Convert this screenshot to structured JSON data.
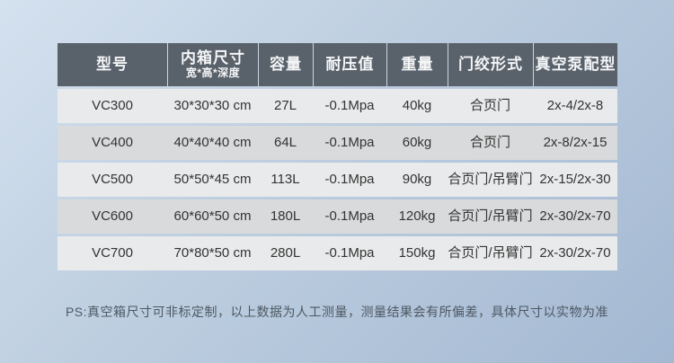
{
  "chart_data": {
    "type": "table",
    "columns": [
      {
        "label": "型号",
        "sublabel": ""
      },
      {
        "label": "内箱尺寸",
        "sublabel": "宽*高*深度"
      },
      {
        "label": "容量",
        "sublabel": ""
      },
      {
        "label": "耐压值",
        "sublabel": ""
      },
      {
        "label": "重量",
        "sublabel": ""
      },
      {
        "label": "门绞形式",
        "sublabel": ""
      },
      {
        "label": "真空泵配型",
        "sublabel": ""
      }
    ],
    "rows": [
      [
        "VC300",
        "30*30*30 cm",
        "27L",
        "-0.1Mpa",
        "40kg",
        "合页门",
        "2x-4/2x-8"
      ],
      [
        "VC400",
        "40*40*40 cm",
        "64L",
        "-0.1Mpa",
        "60kg",
        "合页门",
        "2x-8/2x-15"
      ],
      [
        "VC500",
        "50*50*45 cm",
        "113L",
        "-0.1Mpa",
        "90kg",
        "合页门/吊臂门",
        "2x-15/2x-30"
      ],
      [
        "VC600",
        "60*60*50 cm",
        "180L",
        "-0.1Mpa",
        "120kg",
        "合页门/吊臂门",
        "2x-30/2x-70"
      ],
      [
        "VC700",
        "70*80*50 cm",
        "280L",
        "-0.1Mpa",
        "150kg",
        "合页门/吊臂门",
        "2x-30/2x-70"
      ]
    ],
    "footnote": "PS:真空箱尺寸可非标定制，以上数据为人工测量，测量结果会有所偏差，具体尺寸以实物为准",
    "layout": {
      "header_position": "top",
      "grid": "off",
      "row_striping": "alternating"
    },
    "colors": {
      "header_bg": "#59616a",
      "header_text": "#f4f6f8",
      "row_light": "#e9eaeb",
      "row_dark": "#d9dadb",
      "cell_text": "#333333",
      "footnote_text": "#4d5863",
      "background_gradient_from": "#d4e1ef",
      "background_gradient_to": "#a3b8d2"
    }
  }
}
